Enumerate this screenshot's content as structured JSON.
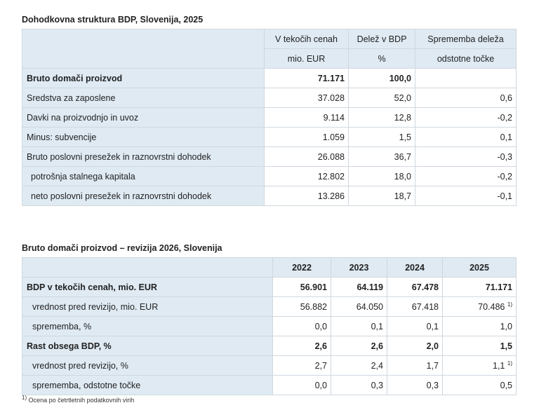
{
  "table1": {
    "title": "Dohodkovna struktura BDP, Slovenija, 2025",
    "headers": [
      {
        "label": "V tekočih cenah",
        "unit": "mio. EUR"
      },
      {
        "label": "Delež v BDP",
        "unit": "%"
      },
      {
        "label": "Sprememba deleža",
        "unit": "odstotne točke"
      }
    ],
    "rows": [
      {
        "label": "Bruto domači proizvod",
        "v1": "71.171",
        "v2": "100,0",
        "v3": ""
      },
      {
        "label": "Sredstva za zaposlene",
        "v1": "37.028",
        "v2": "52,0",
        "v3": "0,6"
      },
      {
        "label": "Davki na proizvodnjo in uvoz",
        "v1": "9.114",
        "v2": "12,8",
        "v3": "-0,2"
      },
      {
        "label": "Minus: subvencije",
        "v1": "1.059",
        "v2": "1,5",
        "v3": "0,1"
      },
      {
        "label": "Bruto poslovni presežek in raznovrstni dohodek",
        "v1": "26.088",
        "v2": "36,7",
        "v3": "-0,3"
      },
      {
        "label": "potrošnja stalnega kapitala",
        "v1": "12.802",
        "v2": "18,0",
        "v3": "-0,2"
      },
      {
        "label": "neto poslovni presežek in raznovrstni dohodek",
        "v1": "13.286",
        "v2": "18,7",
        "v3": "-0,1"
      }
    ]
  },
  "table2": {
    "title": "Bruto domači proizvod – revizija 2026, Slovenija",
    "years": [
      "2022",
      "2023",
      "2024",
      "2025"
    ],
    "rows": [
      {
        "label": "BDP v tekočih cenah, mio. EUR",
        "vals": [
          "56.901",
          "64.119",
          "67.478",
          "71.171"
        ],
        "note": ""
      },
      {
        "label": "vrednost pred revizijo, mio. EUR",
        "vals": [
          "56.882",
          "64.050",
          "67.418",
          "70.486"
        ],
        "note": "1)"
      },
      {
        "label": "sprememba, %",
        "vals": [
          "0,0",
          "0,1",
          "0,1",
          "1,0"
        ],
        "note": ""
      },
      {
        "label": "Rast obsega BDP, %",
        "vals": [
          "2,6",
          "2,6",
          "2,0",
          "1,5"
        ],
        "note": ""
      },
      {
        "label": "vrednost pred revizijo, %",
        "vals": [
          "2,7",
          "2,4",
          "1,7",
          "1,1"
        ],
        "note": "1)"
      },
      {
        "label": "sprememba, odstotne točke",
        "vals": [
          "0,0",
          "0,3",
          "0,3",
          "0,5"
        ],
        "note": ""
      }
    ]
  },
  "footnote": {
    "mark": "1)",
    "text": " Ocena po četrtletnih podatkovnih virih"
  }
}
